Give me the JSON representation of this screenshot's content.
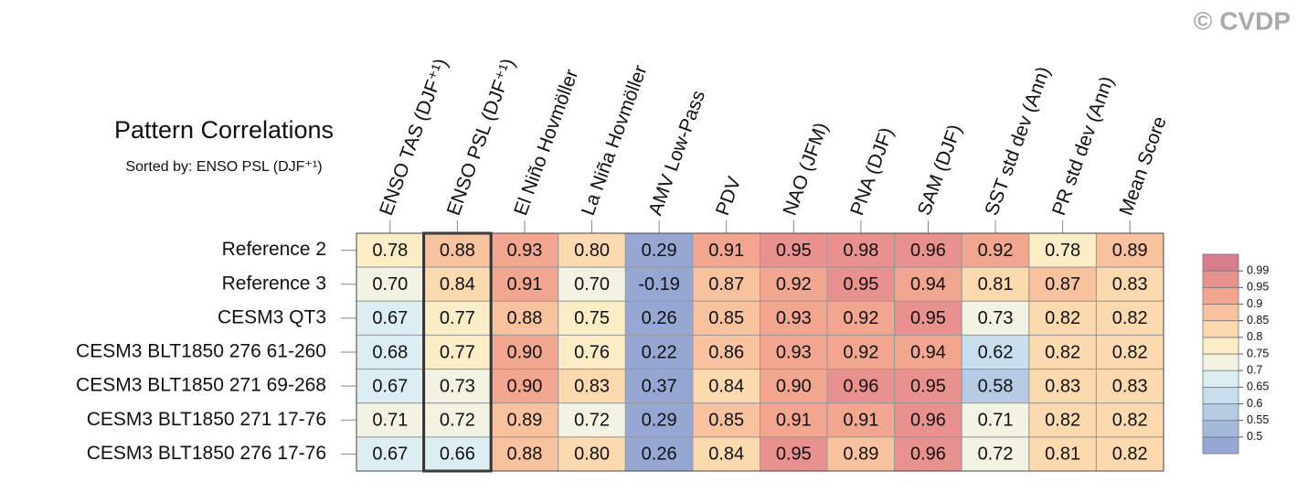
{
  "chart_data": {
    "type": "heatmap",
    "title": "Pattern Correlations",
    "sort_label": "Sorted by:",
    "sorted_by": "ENSO PSL (DJF⁺¹)",
    "watermark": "© CVDP",
    "columns": [
      "ENSO TAS (DJF⁺¹)",
      "ENSO PSL (DJF⁺¹)",
      "El Niño Hovmöller",
      "La Niña Hovmöller",
      "AMV Low-Pass",
      "PDV",
      "NAO (JFM)",
      "PNA (DJF)",
      "SAM (DJF)",
      "SST std dev (Ann)",
      "PR std dev (Ann)",
      "Mean Score"
    ],
    "rows": [
      "Reference 2",
      "Reference 3",
      "CESM3 QT3",
      "CESM3 BLT1850 276 61-260",
      "CESM3 BLT1850 271 69-268",
      "CESM3 BLT1850 271 17-76",
      "CESM3 BLT1850 276 17-76"
    ],
    "values": [
      [
        0.78,
        0.88,
        0.93,
        0.8,
        0.29,
        0.91,
        0.95,
        0.98,
        0.96,
        0.92,
        0.78,
        0.89
      ],
      [
        0.7,
        0.84,
        0.91,
        0.7,
        -0.19,
        0.87,
        0.92,
        0.95,
        0.94,
        0.81,
        0.87,
        0.83
      ],
      [
        0.67,
        0.77,
        0.88,
        0.75,
        0.26,
        0.85,
        0.93,
        0.92,
        0.95,
        0.73,
        0.82,
        0.82
      ],
      [
        0.68,
        0.77,
        0.9,
        0.76,
        0.22,
        0.86,
        0.93,
        0.92,
        0.94,
        0.62,
        0.82,
        0.82
      ],
      [
        0.67,
        0.73,
        0.9,
        0.83,
        0.37,
        0.84,
        0.9,
        0.96,
        0.95,
        0.58,
        0.83,
        0.83
      ],
      [
        0.71,
        0.72,
        0.89,
        0.72,
        0.29,
        0.85,
        0.91,
        0.91,
        0.96,
        0.71,
        0.82,
        0.82
      ],
      [
        0.67,
        0.66,
        0.88,
        0.8,
        0.26,
        0.84,
        0.95,
        0.89,
        0.96,
        0.72,
        0.81,
        0.82
      ]
    ],
    "value_labels": [
      [
        "0.78",
        "0.88",
        "0.93",
        "0.80",
        "0.29",
        "0.91",
        "0.95",
        "0.98",
        "0.96",
        "0.92",
        "0.78",
        "0.89"
      ],
      [
        "0.70",
        "0.84",
        "0.91",
        "0.70",
        "-0.19",
        "0.87",
        "0.92",
        "0.95",
        "0.94",
        "0.81",
        "0.87",
        "0.83"
      ],
      [
        "0.67",
        "0.77",
        "0.88",
        "0.75",
        "0.26",
        "0.85",
        "0.93",
        "0.92",
        "0.95",
        "0.73",
        "0.82",
        "0.82"
      ],
      [
        "0.68",
        "0.77",
        "0.90",
        "0.76",
        "0.22",
        "0.86",
        "0.93",
        "0.92",
        "0.94",
        "0.62",
        "0.82",
        "0.82"
      ],
      [
        "0.67",
        "0.73",
        "0.90",
        "0.83",
        "0.37",
        "0.84",
        "0.90",
        "0.96",
        "0.95",
        "0.58",
        "0.83",
        "0.83"
      ],
      [
        "0.71",
        "0.72",
        "0.89",
        "0.72",
        "0.29",
        "0.85",
        "0.91",
        "0.91",
        "0.96",
        "0.71",
        "0.82",
        "0.82"
      ],
      [
        "0.67",
        "0.66",
        "0.88",
        "0.80",
        "0.26",
        "0.84",
        "0.95",
        "0.89",
        "0.96",
        "0.72",
        "0.81",
        "0.82"
      ]
    ],
    "levels": [
      0.5,
      0.55,
      0.6,
      0.65,
      0.7,
      0.75,
      0.8,
      0.85,
      0.9,
      0.95,
      0.99
    ],
    "colors": [
      "#95a7d2",
      "#a5b9db",
      "#b6cbe3",
      "#c9dfed",
      "#ddeef3",
      "#f3f3e4",
      "#fcedc6",
      "#fdd9af",
      "#f9c29e",
      "#f2a68f",
      "#e8918e",
      "#d97c8c"
    ]
  }
}
